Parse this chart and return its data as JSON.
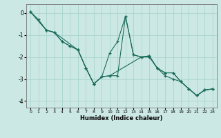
{
  "xlabel": "Humidex (Indice chaleur)",
  "bg_color": "#cce8e4",
  "grid_color": "#aad4cf",
  "line_color": "#1a6b5a",
  "xlim": [
    -0.5,
    23.5
  ],
  "ylim": [
    -4.3,
    0.4
  ],
  "xticks": [
    0,
    1,
    2,
    3,
    4,
    5,
    6,
    7,
    8,
    9,
    10,
    11,
    12,
    13,
    14,
    15,
    16,
    17,
    18,
    19,
    20,
    21,
    22,
    23
  ],
  "yticks": [
    0,
    -1,
    -2,
    -3,
    -4
  ],
  "line1_x": [
    0,
    1,
    2,
    3,
    4,
    5,
    6,
    7,
    8,
    9,
    10,
    14,
    15,
    16,
    17,
    18,
    19,
    20,
    21,
    22,
    23
  ],
  "line1_y": [
    0.05,
    -0.3,
    -0.78,
    -0.88,
    -1.3,
    -1.5,
    -1.68,
    -2.5,
    -3.22,
    -2.9,
    -2.85,
    -2.0,
    -2.0,
    -2.5,
    -2.85,
    -3.0,
    -3.12,
    -3.45,
    -3.75,
    -3.5,
    -3.45
  ],
  "line2_x": [
    0,
    2,
    3,
    4,
    5,
    6,
    7,
    8,
    9,
    10,
    11,
    12,
    13,
    14,
    15,
    16,
    17,
    18,
    19,
    20,
    21,
    22,
    23
  ],
  "line2_y": [
    0.05,
    -0.78,
    -0.88,
    -1.3,
    -1.5,
    -1.68,
    -2.5,
    -3.22,
    -2.9,
    -1.82,
    -1.3,
    -0.15,
    -1.9,
    -2.0,
    -1.95,
    -2.5,
    -2.72,
    -2.72,
    -3.12,
    -3.45,
    -3.75,
    -3.5,
    -3.45
  ],
  "line3_x": [
    0,
    2,
    3,
    6,
    7,
    8,
    9,
    10,
    11,
    12,
    13,
    14,
    15,
    16,
    17,
    18,
    19,
    20,
    21,
    22,
    23
  ],
  "line3_y": [
    0.05,
    -0.78,
    -0.88,
    -1.68,
    -2.5,
    -3.22,
    -2.9,
    -2.85,
    -2.85,
    -0.15,
    -1.9,
    -2.0,
    -1.95,
    -2.5,
    -2.72,
    -2.72,
    -3.12,
    -3.45,
    -3.75,
    -3.5,
    -3.45
  ]
}
